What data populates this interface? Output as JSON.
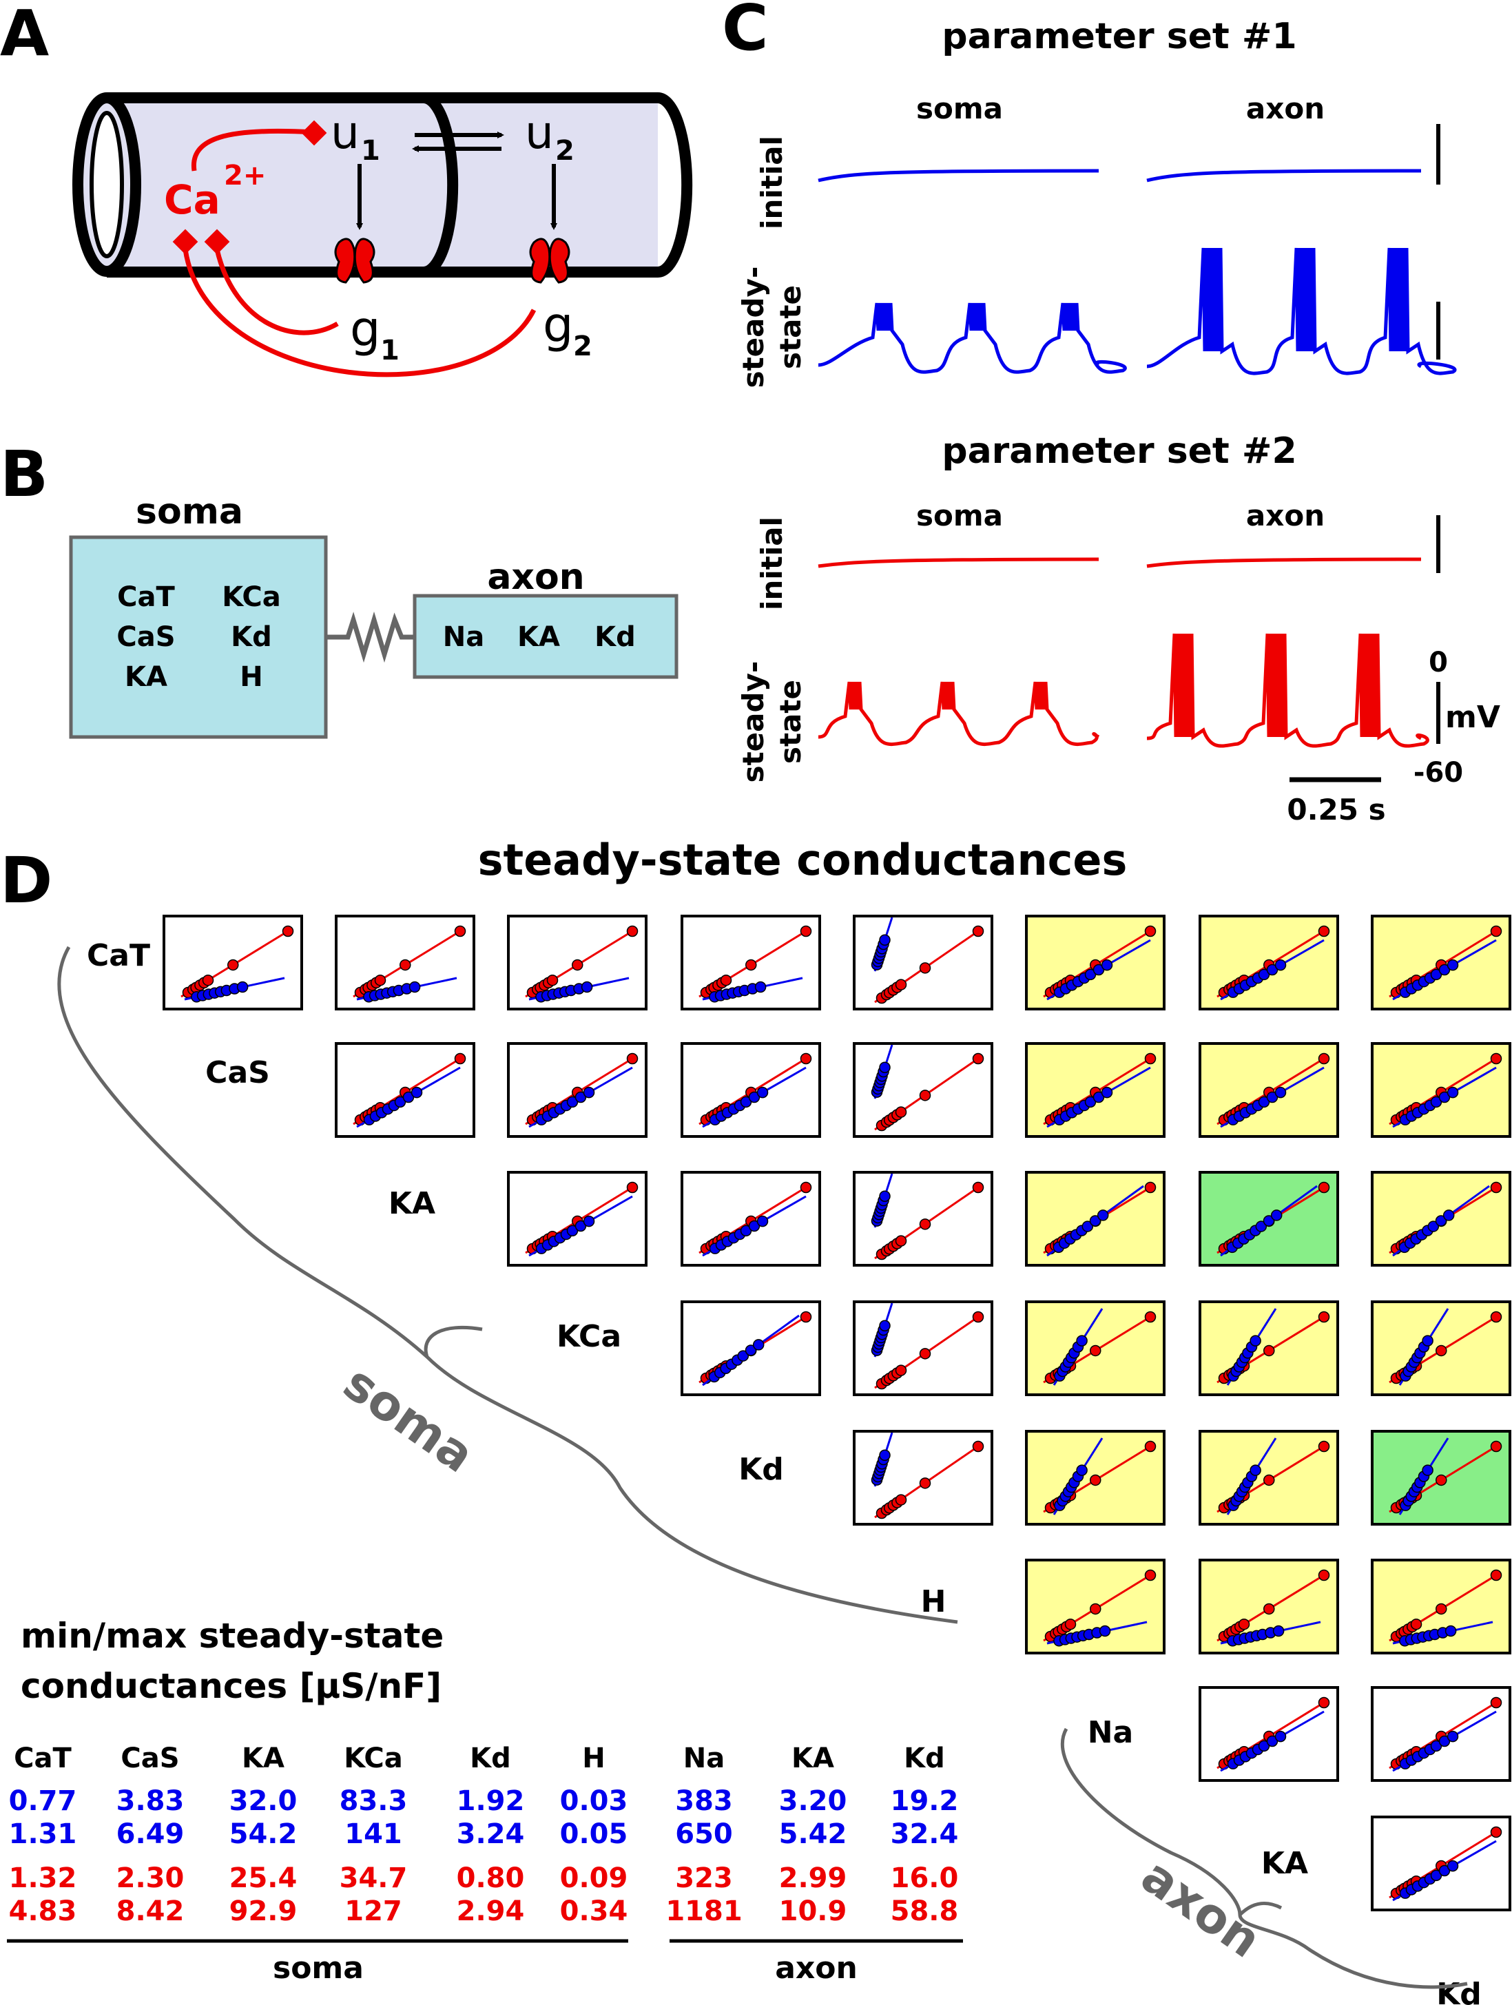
{
  "panel_letters": {
    "a": "A",
    "b": "B",
    "c": "C",
    "d": "D"
  },
  "panel_a": {
    "ca": "Ca",
    "ca_charge": "2+",
    "u1": "u",
    "u1_sub": "1",
    "u2": "u",
    "u2_sub": "2",
    "g1": "g",
    "g1_sub": "1",
    "g2": "g",
    "g2_sub": "2"
  },
  "panel_b": {
    "soma_title": "soma",
    "axon_title": "axon",
    "soma_channels": [
      "CaT",
      "KCa",
      "CaS",
      "Kd",
      "KA",
      "H"
    ],
    "axon_channels": [
      "Na",
      "KA",
      "Kd"
    ]
  },
  "panel_c": {
    "set1_title": "parameter set #1",
    "set2_title": "parameter set #2",
    "soma_label": "soma",
    "axon_label": "axon",
    "initial_label": "initial",
    "steady_label_1": "steady-",
    "steady_label_2": "state",
    "vscale_top": "0",
    "vscale_unit": "mV",
    "vscale_bottom": "-60",
    "tscale": "0.25 s",
    "colors": {
      "set1": "#0000ee",
      "set2": "#ee0000"
    }
  },
  "panel_d": {
    "title": "steady-state conductances",
    "row_labels": [
      "CaT",
      "CaS",
      "KA",
      "KCa",
      "Kd",
      "H",
      "Na",
      "KA",
      "Kd"
    ],
    "group_soma": "soma",
    "group_axon": "axon",
    "colors": {
      "yellow": "#ffff99",
      "green": "#88ee88",
      "set1": "#0000ee",
      "set2": "#ee0000"
    }
  },
  "table": {
    "title_line1": "min/max steady-state",
    "title_line2": "conductances [µS/nF]",
    "headers": [
      "CaT",
      "CaS",
      "KA",
      "KCa",
      "Kd",
      "H",
      "Na",
      "KA",
      "Kd"
    ],
    "blue_rows": [
      [
        "0.77",
        "3.83",
        "32.0",
        "83.3",
        "1.92",
        "0.03",
        "383",
        "3.20",
        "19.2"
      ],
      [
        "1.31",
        "6.49",
        "54.2",
        "141",
        "3.24",
        "0.05",
        "650",
        "5.42",
        "32.4"
      ]
    ],
    "red_rows": [
      [
        "1.32",
        "2.30",
        "25.4",
        "34.7",
        "0.80",
        "0.09",
        "323",
        "2.99",
        "16.0"
      ],
      [
        "4.83",
        "8.42",
        "92.9",
        "127",
        "2.94",
        "0.34",
        "1181",
        "10.9",
        "58.8"
      ]
    ],
    "group_soma": "soma",
    "group_axon": "axon"
  }
}
